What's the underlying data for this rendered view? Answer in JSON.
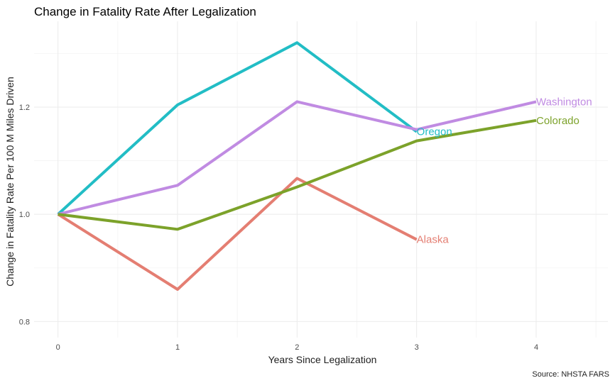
{
  "chart_data": {
    "type": "line",
    "title": "Change in Fatality Rate After Legalization",
    "xlabel": "Years Since Legalization",
    "ylabel": "Change in Fatality Rate Per 100 M Miles Driven",
    "caption": "Source: NHSTA FARS",
    "x": [
      0,
      1,
      2,
      3,
      4
    ],
    "xlim": [
      -0.2,
      4.6
    ],
    "ylim": [
      0.77,
      1.36
    ],
    "x_ticks": [
      "0",
      "1",
      "2",
      "3",
      "4"
    ],
    "y_ticks": [
      "0.8",
      "1.0",
      "1.2"
    ],
    "grid": true,
    "legend": "none (series labeled directly at line ends)",
    "series": [
      {
        "name": "Alaska",
        "color": "#E47E72",
        "values": [
          1.0,
          0.86,
          1.067,
          0.953,
          null
        ]
      },
      {
        "name": "Oregon",
        "color": "#22BDC5",
        "values": [
          1.0,
          1.204,
          1.32,
          1.154,
          null
        ]
      },
      {
        "name": "Washington",
        "color": "#C08BE2",
        "values": [
          1.0,
          1.054,
          1.21,
          1.158,
          1.21
        ]
      },
      {
        "name": "Colorado",
        "color": "#7CA22A",
        "values": [
          1.0,
          0.972,
          1.051,
          1.137,
          1.175
        ]
      }
    ]
  }
}
